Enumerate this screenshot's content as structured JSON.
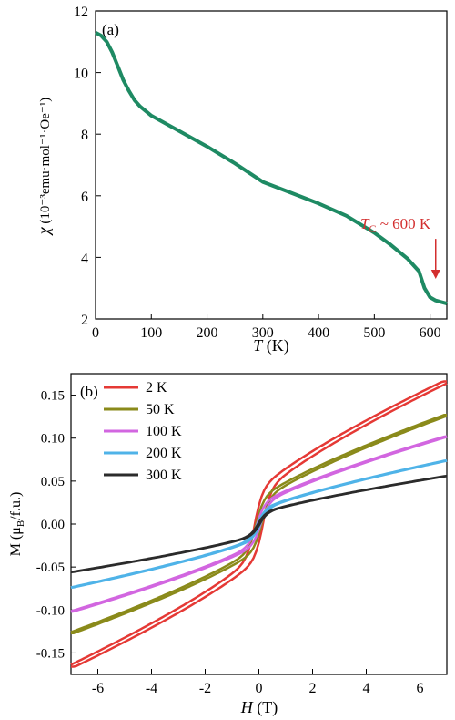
{
  "figure": {
    "panel_a_label": "(a)",
    "panel_b_label": "(b)",
    "annotation_tc_prefix": "T",
    "annotation_tc_sub": "C",
    "annotation_tc_rest": " ~ 600 K",
    "annotation_color": "#d32f2f"
  },
  "chart_data": [
    {
      "type": "line",
      "panel": "(a)",
      "xlabel_italic": "T",
      "xlabel_unit": " (K)",
      "ylabel_symbol": "χ",
      "ylabel_unit": " (10⁻³emu·mol⁻¹·Oe⁻¹)",
      "xlim": [
        0,
        630
      ],
      "ylim": [
        2,
        12
      ],
      "xticks": [
        0,
        100,
        200,
        300,
        400,
        500,
        600
      ],
      "yticks": [
        2,
        4,
        6,
        8,
        10,
        12
      ],
      "grid": false,
      "series": [
        {
          "color": "#1e8a63",
          "x": [
            0,
            10,
            20,
            30,
            40,
            50,
            60,
            70,
            80,
            90,
            100,
            150,
            200,
            250,
            300,
            350,
            400,
            450,
            500,
            530,
            560,
            580,
            590,
            600,
            610,
            620,
            630
          ],
          "y": [
            11.3,
            11.2,
            11.0,
            10.65,
            10.2,
            9.75,
            9.4,
            9.1,
            8.9,
            8.75,
            8.6,
            8.1,
            7.6,
            7.05,
            6.45,
            6.1,
            5.75,
            5.35,
            4.8,
            4.4,
            3.95,
            3.55,
            3.0,
            2.7,
            2.6,
            2.55,
            2.5
          ]
        }
      ],
      "annotation": {
        "text": "T_C ~ 600 K",
        "arrow_x": 610,
        "arrow_y_from": 4.6,
        "arrow_y_to": 3.3
      }
    },
    {
      "type": "line",
      "panel": "(b)",
      "xlabel_italic": "H",
      "xlabel_unit": " (T)",
      "ylabel_text": "M (μ",
      "ylabel_sub": "B",
      "ylabel_rest": "/f.u.)",
      "xlim": [
        -7,
        7
      ],
      "ylim": [
        -0.175,
        0.175
      ],
      "xticks": [
        -6,
        -4,
        -2,
        0,
        2,
        4,
        6
      ],
      "yticks": [
        -0.15,
        -0.1,
        -0.05,
        0.0,
        0.05,
        0.1,
        0.15
      ],
      "ytick_labels": [
        "-0.15",
        "-0.10",
        "-0.05",
        "0.00",
        "0.05",
        "0.10",
        "0.15"
      ],
      "grid": false,
      "legend_position": "top-left",
      "series": [
        {
          "name": "2 K",
          "color": "#e53935",
          "msat": 0.166,
          "coercive": 0.15
        },
        {
          "name": "50 K",
          "color": "#8a8a1a",
          "msat": 0.127,
          "coercive": 0.1
        },
        {
          "name": "100 K",
          "color": "#d266e0",
          "msat": 0.102,
          "coercive": 0.07
        },
        {
          "name": "200 K",
          "color": "#4fb3e8",
          "msat": 0.074,
          "coercive": 0.05
        },
        {
          "name": "300 K",
          "color": "#2b2b2b",
          "msat": 0.056,
          "coercive": 0.03
        }
      ]
    }
  ]
}
